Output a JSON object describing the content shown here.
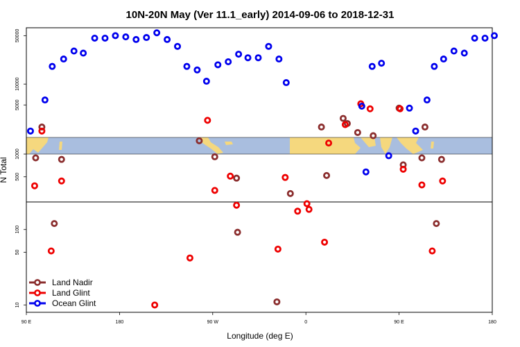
{
  "chart_data": {
    "type": "scatter",
    "title": "10N-20N May (Ver 11.1_early)   2014-09-06 to 2018-12-31",
    "xlabel": "Longitude (deg E)",
    "ylabel": "N Total",
    "x_axis_note": "continuous longitude: 90 = 90 E, 180 = 180, 270 = 90 W, 360 = 0, 450 = 90 E",
    "xlim": [
      90,
      540
    ],
    "x_ticks": [
      {
        "value": 90,
        "label": "90 E"
      },
      {
        "value": 180,
        "label": "180"
      },
      {
        "value": 270,
        "label": "90 W"
      },
      {
        "value": 360,
        "label": "0"
      },
      {
        "value": 450,
        "label": "90 E"
      },
      {
        "value": 540,
        "label": "180"
      }
    ],
    "y_scale": "log",
    "y_ticks": [
      10,
      50,
      100,
      500,
      1000,
      5000,
      10000,
      50000
    ],
    "lower_panel_ylim": [
      8,
      1000
    ],
    "upper_panel_ylim": [
      1700,
      65000
    ],
    "map_strip": "world-map strip showing land areas between lower and upper panels",
    "legend_position": "bottom-left",
    "series": [
      {
        "name": "Land Nadir",
        "color": "#8b2e2e",
        "points": [
          {
            "x": 99,
            "y": 890
          },
          {
            "x": 105,
            "y": 2400
          },
          {
            "x": 117,
            "y": 120
          },
          {
            "x": 124,
            "y": 850
          },
          {
            "x": 257,
            "y": 1500
          },
          {
            "x": 272,
            "y": 920
          },
          {
            "x": 293,
            "y": 480
          },
          {
            "x": 294,
            "y": 92
          },
          {
            "x": 332,
            "y": 11
          },
          {
            "x": 345,
            "y": 300
          },
          {
            "x": 380,
            "y": 520
          },
          {
            "x": 375,
            "y": 2400
          },
          {
            "x": 396,
            "y": 3200
          },
          {
            "x": 400,
            "y": 2700
          },
          {
            "x": 410,
            "y": 2000
          },
          {
            "x": 425,
            "y": 1800
          },
          {
            "x": 450,
            "y": 4500
          },
          {
            "x": 454,
            "y": 720
          },
          {
            "x": 472,
            "y": 890
          },
          {
            "x": 475,
            "y": 2400
          },
          {
            "x": 486,
            "y": 120
          },
          {
            "x": 491,
            "y": 850
          }
        ]
      },
      {
        "name": "Land Glint",
        "color": "#ee0000",
        "points": [
          {
            "x": 98,
            "y": 380
          },
          {
            "x": 105,
            "y": 2100
          },
          {
            "x": 114,
            "y": 52
          },
          {
            "x": 124,
            "y": 440
          },
          {
            "x": 214,
            "y": 10
          },
          {
            "x": 248,
            "y": 42
          },
          {
            "x": 265,
            "y": 3000
          },
          {
            "x": 272,
            "y": 330
          },
          {
            "x": 287,
            "y": 510
          },
          {
            "x": 293,
            "y": 210
          },
          {
            "x": 333,
            "y": 55
          },
          {
            "x": 340,
            "y": 490
          },
          {
            "x": 352,
            "y": 175
          },
          {
            "x": 361,
            "y": 220
          },
          {
            "x": 363,
            "y": 185
          },
          {
            "x": 378,
            "y": 68
          },
          {
            "x": 382,
            "y": 1400
          },
          {
            "x": 398,
            "y": 2600
          },
          {
            "x": 413,
            "y": 5200
          },
          {
            "x": 422,
            "y": 4400
          },
          {
            "x": 451,
            "y": 4400
          },
          {
            "x": 454,
            "y": 630
          },
          {
            "x": 472,
            "y": 390
          },
          {
            "x": 482,
            "y": 52
          },
          {
            "x": 492,
            "y": 440
          }
        ]
      },
      {
        "name": "Ocean Glint",
        "color": "#0000ee",
        "points": [
          {
            "x": 94,
            "y": 2100
          },
          {
            "x": 108,
            "y": 5900
          },
          {
            "x": 115,
            "y": 18000
          },
          {
            "x": 126,
            "y": 23000
          },
          {
            "x": 136,
            "y": 30000
          },
          {
            "x": 145,
            "y": 28000
          },
          {
            "x": 156,
            "y": 46000
          },
          {
            "x": 166,
            "y": 46000
          },
          {
            "x": 176,
            "y": 50000
          },
          {
            "x": 186,
            "y": 48000
          },
          {
            "x": 196,
            "y": 44000
          },
          {
            "x": 206,
            "y": 47000
          },
          {
            "x": 216,
            "y": 55000
          },
          {
            "x": 226,
            "y": 44000
          },
          {
            "x": 236,
            "y": 35000
          },
          {
            "x": 245,
            "y": 18000
          },
          {
            "x": 255,
            "y": 16000
          },
          {
            "x": 264,
            "y": 11000
          },
          {
            "x": 275,
            "y": 19000
          },
          {
            "x": 285,
            "y": 21000
          },
          {
            "x": 295,
            "y": 27000
          },
          {
            "x": 304,
            "y": 24000
          },
          {
            "x": 314,
            "y": 24000
          },
          {
            "x": 324,
            "y": 35000
          },
          {
            "x": 334,
            "y": 23000
          },
          {
            "x": 341,
            "y": 10500
          },
          {
            "x": 414,
            "y": 4800
          },
          {
            "x": 418,
            "y": 580
          },
          {
            "x": 424,
            "y": 18000
          },
          {
            "x": 433,
            "y": 20000
          },
          {
            "x": 440,
            "y": 950
          },
          {
            "x": 460,
            "y": 4500
          },
          {
            "x": 466,
            "y": 2100
          },
          {
            "x": 477,
            "y": 5900
          },
          {
            "x": 484,
            "y": 18000
          },
          {
            "x": 493,
            "y": 23000
          },
          {
            "x": 503,
            "y": 30000
          },
          {
            "x": 513,
            "y": 28000
          },
          {
            "x": 523,
            "y": 46000
          },
          {
            "x": 533,
            "y": 46000
          },
          {
            "x": 542,
            "y": 50000
          }
        ]
      }
    ]
  }
}
